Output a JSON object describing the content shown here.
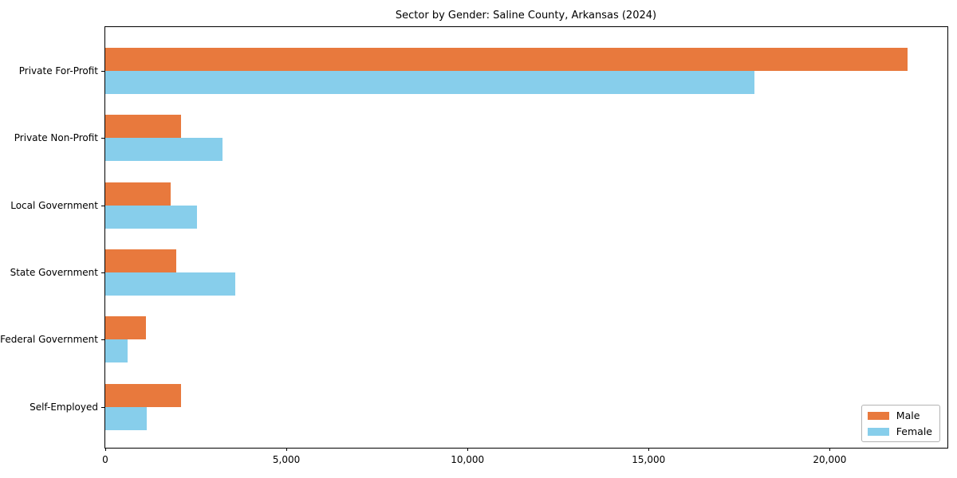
{
  "chart_data": {
    "type": "bar",
    "orientation": "horizontal",
    "title": "Sector by Gender: Saline County, Arkansas (2024)",
    "categories": [
      "Private For-Profit",
      "Private Non-Profit",
      "Local Government",
      "State Government",
      "Federal Government",
      "Self-Employed"
    ],
    "series": [
      {
        "name": "Male",
        "color": "#e8793d",
        "values": [
          22140,
          2090,
          1800,
          1950,
          1130,
          2090
        ]
      },
      {
        "name": "Female",
        "color": "#87ceeb",
        "values": [
          17930,
          3230,
          2530,
          3590,
          620,
          1140
        ]
      }
    ],
    "xlabel": "",
    "ylabel": "",
    "xlim": [
      0,
      23250
    ],
    "x_ticks": [
      0,
      5000,
      10000,
      15000,
      20000
    ],
    "x_tick_labels": [
      "0",
      "5,000",
      "10,000",
      "15,000",
      "20,000"
    ],
    "grid": false,
    "legend": {
      "position": "lower-right",
      "entries": [
        "Male",
        "Female"
      ]
    }
  }
}
